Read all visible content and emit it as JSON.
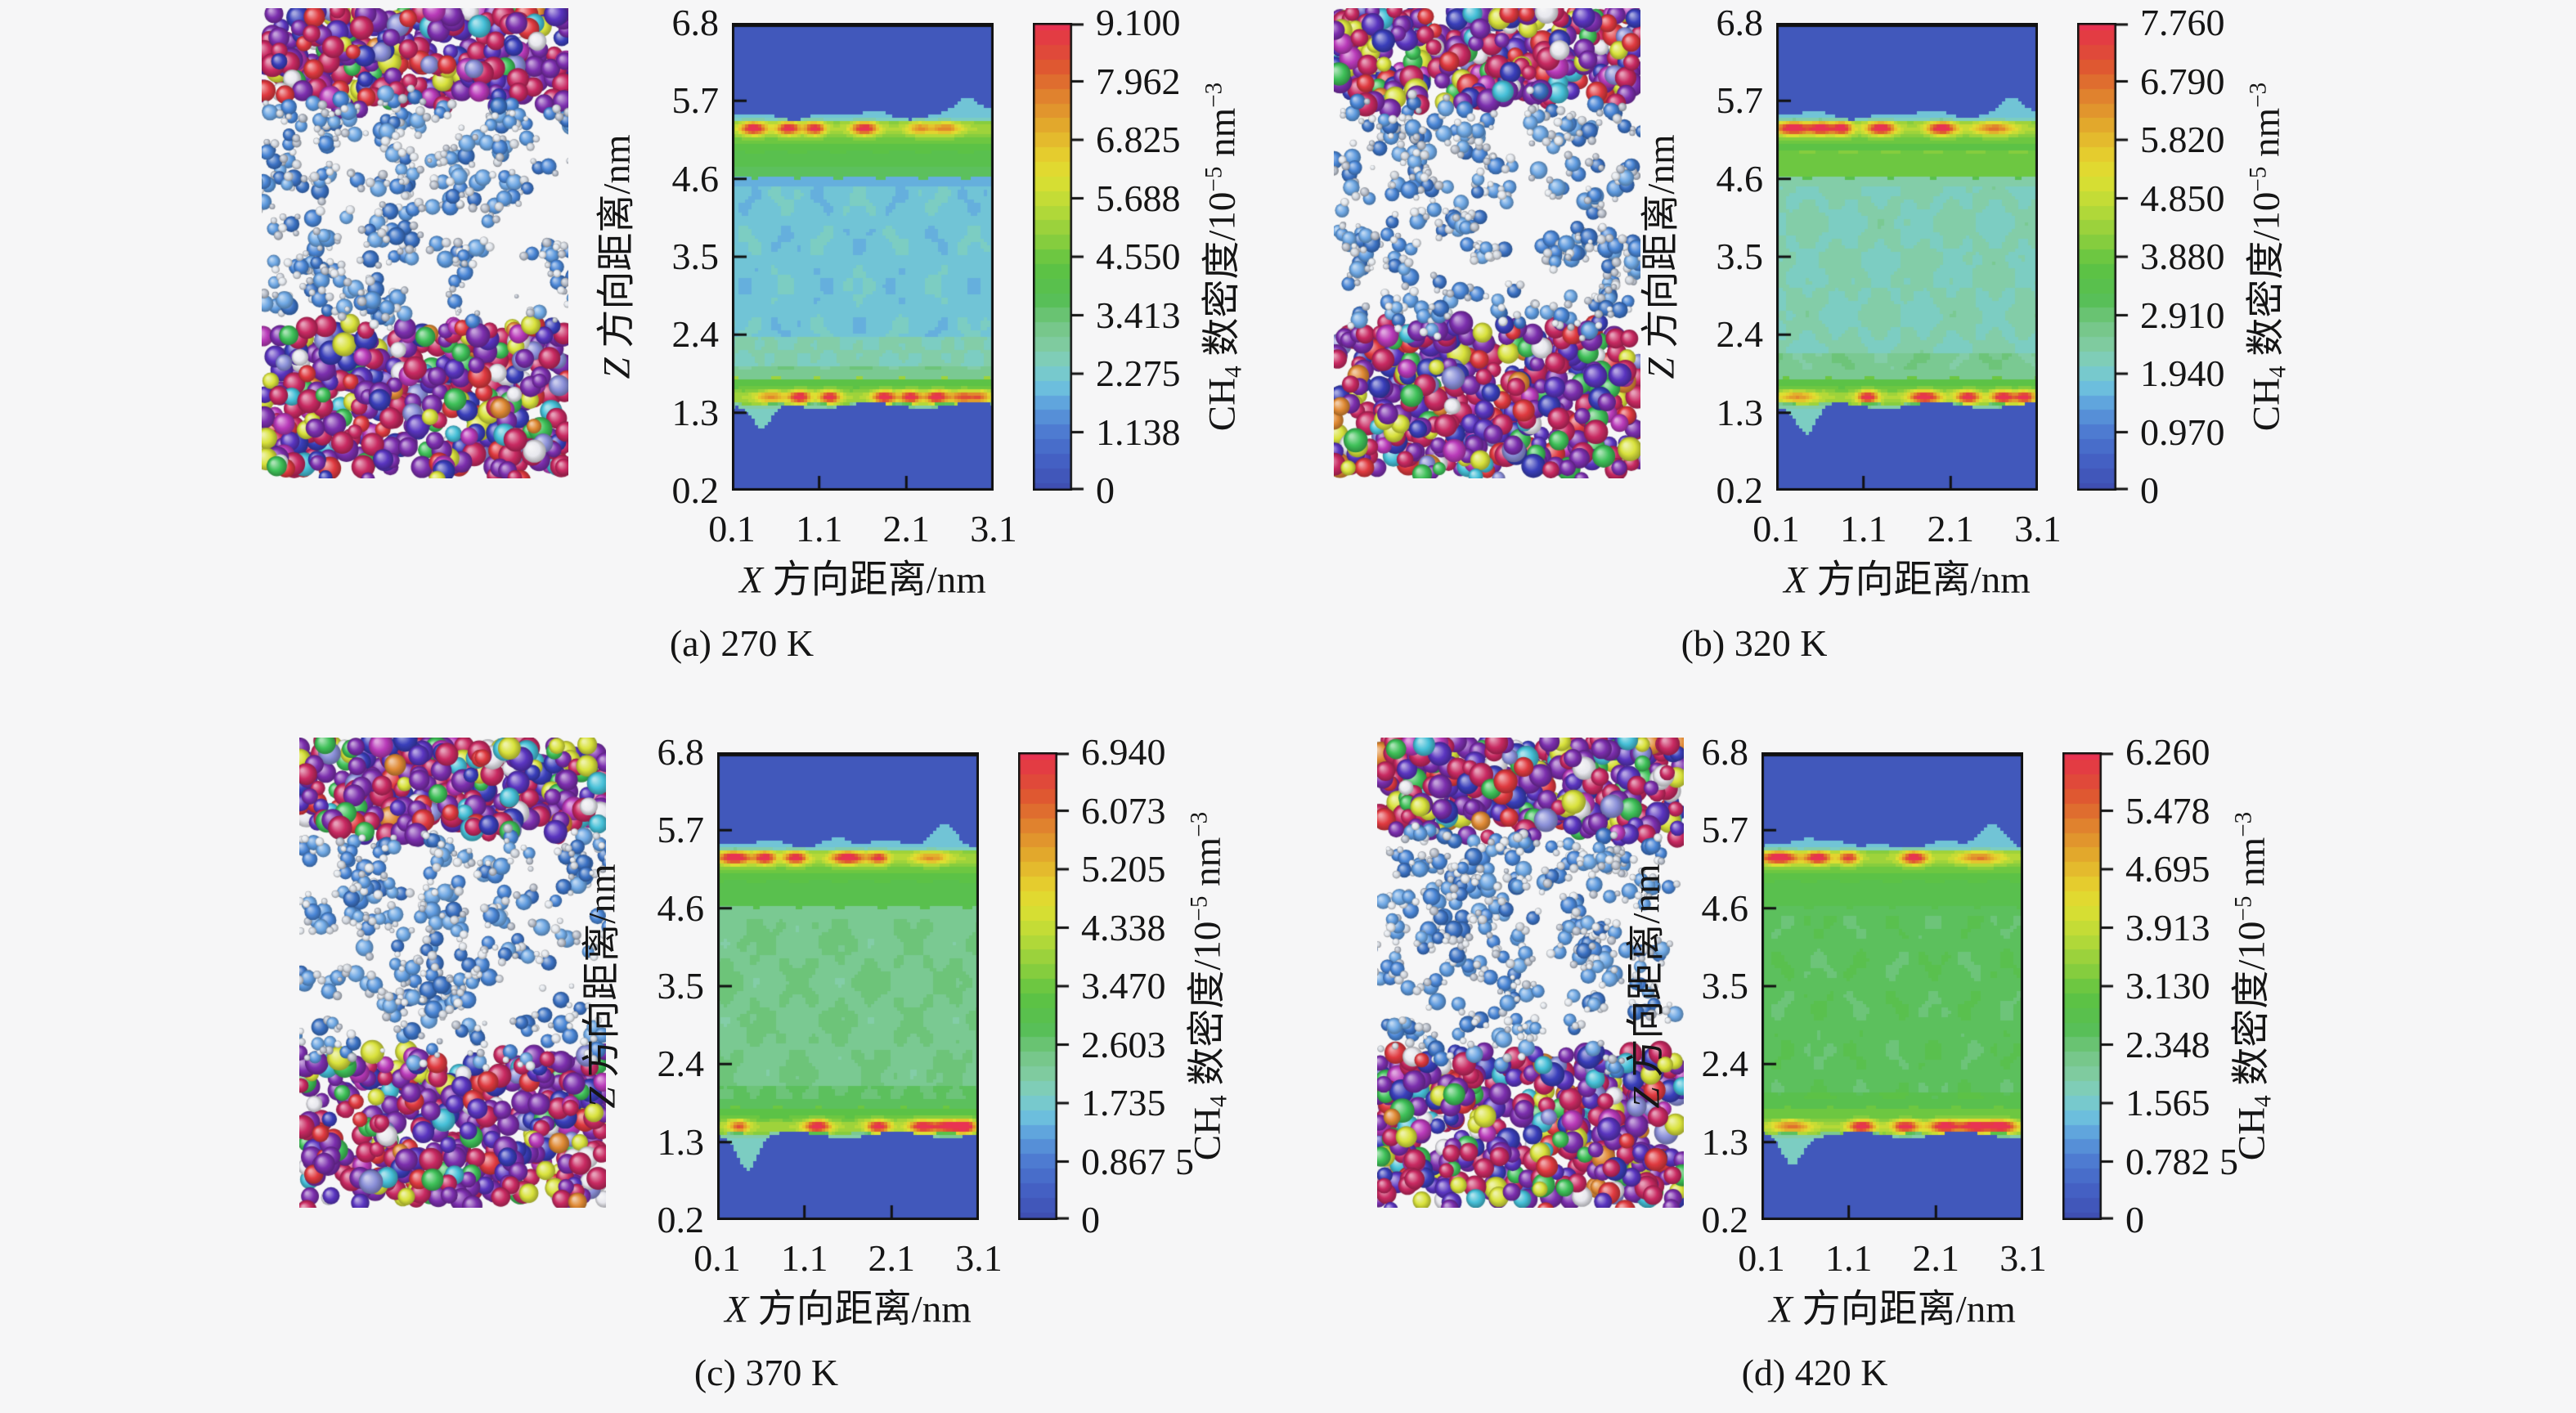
{
  "figure": {
    "background": "#f6f6f7",
    "kind": "molecular-simulation-snapshots-with-ch4-density-heatmaps",
    "panel_count": 4
  },
  "labels": {
    "y_var": "Z",
    "y_rest": " 方向距离/nm",
    "x_var": "X",
    "x_rest": " 方向距离/nm",
    "cb_pre": "CH",
    "cb_sub": "4",
    "cb_mid": " 数密度/10",
    "cb_sup1": "−5",
    "cb_mid2": " nm",
    "cb_sup2": "−3"
  },
  "axes": {
    "y_ticks": [
      "6.8",
      "5.7",
      "4.6",
      "3.5",
      "2.4",
      "1.3",
      "0.2"
    ],
    "x_ticks": [
      "0.1",
      "1.1",
      "2.1",
      "3.1"
    ],
    "y_range": [
      0.2,
      6.8
    ],
    "x_range": [
      0.1,
      3.1
    ]
  },
  "colormap": [
    [
      0.0,
      "#3f4fb2"
    ],
    [
      0.07,
      "#4563c6"
    ],
    [
      0.13,
      "#4f7ed2"
    ],
    [
      0.18,
      "#5e9fdd"
    ],
    [
      0.22,
      "#6dc0de"
    ],
    [
      0.26,
      "#7bcdc8"
    ],
    [
      0.3,
      "#83cda8"
    ],
    [
      0.35,
      "#76c787"
    ],
    [
      0.41,
      "#57bf55"
    ],
    [
      0.48,
      "#5ec343"
    ],
    [
      0.54,
      "#8ccf3e"
    ],
    [
      0.61,
      "#bcdb38"
    ],
    [
      0.67,
      "#dfe032"
    ],
    [
      0.72,
      "#e6cc2e"
    ],
    [
      0.78,
      "#e3a92c"
    ],
    [
      0.84,
      "#e1852e"
    ],
    [
      0.9,
      "#df5c30"
    ],
    [
      0.96,
      "#e23f40"
    ],
    [
      1.0,
      "#e93352"
    ]
  ],
  "snapshot_style": {
    "slab_colors": [
      [
        "#7c2fae",
        26
      ],
      [
        "#5a35c0",
        9
      ],
      [
        "#3a3fbb",
        8
      ],
      [
        "#c92a62",
        22
      ],
      [
        "#e03a40",
        6
      ],
      [
        "#b93ab9",
        4
      ],
      [
        "#d9e23c",
        7
      ],
      [
        "#3fc159",
        6
      ],
      [
        "#46c0d8",
        3
      ],
      [
        "#e8e8ee",
        4
      ],
      [
        "#e08a35",
        2
      ],
      [
        "#8a8fd8",
        3
      ]
    ],
    "water_colors": [
      "#4a86d6",
      "#3c72c4",
      "#5e9ade",
      "#6fa8e4"
    ],
    "satellite_colors": [
      "#e2e6ec",
      "#cfd4dc",
      "#b6bcc8"
    ]
  },
  "chart_data": [
    {
      "type": "heatmap",
      "caption": "(a) 270 K",
      "temperature_K": 270,
      "x_label": "X 方向距离/nm",
      "y_label": "Z 方向距离/nm",
      "cb_label": "CH4 数密度/10−5 nm−3",
      "x_range": [
        0.1,
        3.1
      ],
      "y_range": [
        0.2,
        6.8
      ],
      "vmax": 9.1,
      "cb_ticks": [
        "9.100",
        "7.962",
        "6.825",
        "5.688",
        "4.550",
        "3.413",
        "2.275",
        "1.138",
        "0"
      ],
      "cb_tick_values": [
        9.1,
        7.962,
        6.825,
        5.688,
        4.55,
        3.413,
        2.275,
        1.138,
        0
      ],
      "interior_level": 0.235,
      "adsorption_layer_z": [
        1.52,
        5.31
      ],
      "z_profile": [
        [
          0.2,
          0
        ],
        [
          1.3,
          0.2
        ],
        [
          1.52,
          9.1
        ],
        [
          1.7,
          4.3
        ],
        [
          2.0,
          2.7
        ],
        [
          3.5,
          2.2
        ],
        [
          4.5,
          2.2
        ],
        [
          4.8,
          4.0
        ],
        [
          5.31,
          9.1
        ],
        [
          5.5,
          1.0
        ],
        [
          6.8,
          0
        ]
      ],
      "top_spots": [
        [
          0.35,
          0.5,
          0.1
        ],
        [
          0.75,
          0.48,
          0.09
        ],
        [
          1.05,
          0.46,
          0.08
        ],
        [
          1.62,
          0.48,
          0.1
        ],
        [
          2.25,
          0.24,
          0.1
        ],
        [
          2.55,
          0.27,
          0.12
        ]
      ],
      "bottom_spots": [
        [
          0.55,
          0.26,
          0.12
        ],
        [
          0.88,
          0.5,
          0.08
        ],
        [
          1.22,
          0.48,
          0.08
        ],
        [
          1.85,
          0.5,
          0.09
        ],
        [
          2.15,
          0.48,
          0.08
        ],
        [
          2.45,
          0.5,
          0.09
        ],
        [
          2.75,
          0.34,
          0.1
        ],
        [
          2.95,
          0.28,
          0.08
        ]
      ],
      "bumps_top": [
        [
          2.78,
          0.24
        ]
      ],
      "dips_bottom": [
        [
          0.45,
          0.35
        ]
      ],
      "bands": [
        [
          4.5,
          4.75,
          -0.035
        ],
        [
          1.95,
          2.35,
          0.05
        ],
        [
          1.75,
          1.95,
          0.1
        ]
      ],
      "seed": 101
    },
    {
      "type": "heatmap",
      "caption": "(b) 320 K",
      "temperature_K": 320,
      "x_label": "X 方向距离/nm",
      "y_label": "Z 方向距离/nm",
      "cb_label": "CH4 数密度/10−5 nm−3",
      "x_range": [
        0.1,
        3.1
      ],
      "y_range": [
        0.2,
        6.8
      ],
      "vmax": 7.76,
      "cb_ticks": [
        "7.760",
        "6.790",
        "5.820",
        "4.850",
        "3.880",
        "2.910",
        "1.940",
        "0.970",
        "0"
      ],
      "cb_tick_values": [
        7.76,
        6.79,
        5.82,
        4.85,
        3.88,
        2.91,
        1.94,
        0.97,
        0
      ],
      "interior_level": 0.285,
      "adsorption_layer_z": [
        1.52,
        5.31
      ],
      "z_profile": [
        [
          0.2,
          0
        ],
        [
          1.3,
          0.2
        ],
        [
          1.52,
          7.76
        ],
        [
          1.7,
          3.9
        ],
        [
          2.0,
          2.6
        ],
        [
          3.5,
          2.3
        ],
        [
          4.8,
          3.4
        ],
        [
          5.31,
          7.76
        ],
        [
          5.5,
          0.9
        ],
        [
          6.8,
          0
        ]
      ],
      "top_spots": [
        [
          0.3,
          0.52,
          0.14
        ],
        [
          0.62,
          0.48,
          0.09
        ],
        [
          0.85,
          0.5,
          0.08
        ],
        [
          1.3,
          0.52,
          0.11
        ],
        [
          2.0,
          0.52,
          0.11
        ],
        [
          2.6,
          0.3,
          0.16
        ]
      ],
      "bottom_spots": [
        [
          0.35,
          0.24,
          0.15
        ],
        [
          1.15,
          0.48,
          0.08
        ],
        [
          1.8,
          0.5,
          0.12
        ],
        [
          2.3,
          0.48,
          0.09
        ],
        [
          2.7,
          0.5,
          0.09
        ],
        [
          2.95,
          0.46,
          0.08
        ]
      ],
      "bumps_top": [
        [
          2.8,
          0.3
        ]
      ],
      "dips_bottom": [
        [
          0.45,
          0.4
        ]
      ],
      "bands": [
        [
          4.62,
          5.0,
          0.06
        ],
        [
          1.78,
          2.15,
          0.05
        ]
      ],
      "seed": 138
    },
    {
      "type": "heatmap",
      "caption": "(c) 370 K",
      "temperature_K": 370,
      "x_label": "X 方向距离/nm",
      "y_label": "Z 方向距离/nm",
      "cb_label": "CH4 数密度/10−5 nm−3",
      "x_range": [
        0.1,
        3.1
      ],
      "y_range": [
        0.2,
        6.8
      ],
      "vmax": 6.94,
      "cb_ticks": [
        "6.940",
        "6.073",
        "5.205",
        "4.338",
        "3.470",
        "2.603",
        "1.735",
        "0.867 5",
        "0"
      ],
      "cb_tick_values": [
        6.94,
        6.073,
        5.205,
        4.338,
        3.47,
        2.603,
        1.735,
        0.8675,
        0
      ],
      "interior_level": 0.345,
      "adsorption_layer_z": [
        1.52,
        5.31
      ],
      "z_profile": [
        [
          0.2,
          0
        ],
        [
          1.3,
          0.2
        ],
        [
          1.52,
          6.94
        ],
        [
          1.7,
          3.5
        ],
        [
          3.5,
          2.4
        ],
        [
          4.8,
          3.1
        ],
        [
          5.31,
          6.94
        ],
        [
          5.5,
          0.8
        ],
        [
          6.8,
          0
        ]
      ],
      "top_spots": [
        [
          0.3,
          0.52,
          0.13
        ],
        [
          0.65,
          0.48,
          0.08
        ],
        [
          1.0,
          0.48,
          0.09
        ],
        [
          1.6,
          0.52,
          0.13
        ],
        [
          1.95,
          0.4,
          0.08
        ],
        [
          2.55,
          0.25,
          0.14
        ]
      ],
      "bottom_spots": [
        [
          0.35,
          0.34,
          0.08
        ],
        [
          1.25,
          0.5,
          0.1
        ],
        [
          1.95,
          0.48,
          0.09
        ],
        [
          2.45,
          0.48,
          0.1
        ],
        [
          2.75,
          0.5,
          0.12
        ],
        [
          2.95,
          0.48,
          0.08
        ]
      ],
      "bumps_top": [
        [
          2.72,
          0.3
        ],
        [
          1.5,
          0.12
        ]
      ],
      "dips_bottom": [
        [
          0.45,
          0.45
        ]
      ],
      "bands": [
        [
          1.75,
          2.1,
          0.04
        ]
      ],
      "seed": 175
    },
    {
      "type": "heatmap",
      "caption": "(d) 420 K",
      "temperature_K": 420,
      "x_label": "X 方向距离/nm",
      "y_label": "Z 方向距离/nm",
      "cb_label": "CH4 数密度/10−5 nm−3",
      "x_range": [
        0.1,
        3.1
      ],
      "y_range": [
        0.2,
        6.8
      ],
      "vmax": 6.26,
      "cb_ticks": [
        "6.260",
        "5.478",
        "4.695",
        "3.913",
        "3.130",
        "2.348",
        "1.565",
        "0.782 5",
        "0"
      ],
      "cb_tick_values": [
        6.26,
        5.478,
        4.695,
        3.913,
        3.13,
        2.348,
        1.565,
        0.7825,
        0
      ],
      "interior_level": 0.4,
      "adsorption_layer_z": [
        1.52,
        5.31
      ],
      "z_profile": [
        [
          0.2,
          0
        ],
        [
          1.3,
          0.2
        ],
        [
          1.52,
          6.26
        ],
        [
          1.7,
          3.2
        ],
        [
          3.5,
          2.5
        ],
        [
          4.8,
          2.9
        ],
        [
          5.31,
          6.26
        ],
        [
          5.5,
          0.8
        ],
        [
          6.8,
          0
        ]
      ],
      "top_spots": [
        [
          0.3,
          0.52,
          0.15
        ],
        [
          0.75,
          0.5,
          0.1
        ],
        [
          1.1,
          0.4,
          0.08
        ],
        [
          1.85,
          0.5,
          0.1
        ],
        [
          2.6,
          0.28,
          0.18
        ]
      ],
      "bottom_spots": [
        [
          0.45,
          0.3,
          0.15
        ],
        [
          1.25,
          0.5,
          0.1
        ],
        [
          1.75,
          0.48,
          0.1
        ],
        [
          2.2,
          0.52,
          0.12
        ],
        [
          2.55,
          0.52,
          0.12
        ],
        [
          2.85,
          0.52,
          0.12
        ]
      ],
      "bumps_top": [
        [
          2.75,
          0.28
        ],
        [
          0.55,
          0.1
        ]
      ],
      "dips_bottom": [
        [
          0.45,
          0.4
        ]
      ],
      "bands": [
        [
          1.7,
          2.0,
          0.04
        ]
      ],
      "seed": 212
    }
  ]
}
